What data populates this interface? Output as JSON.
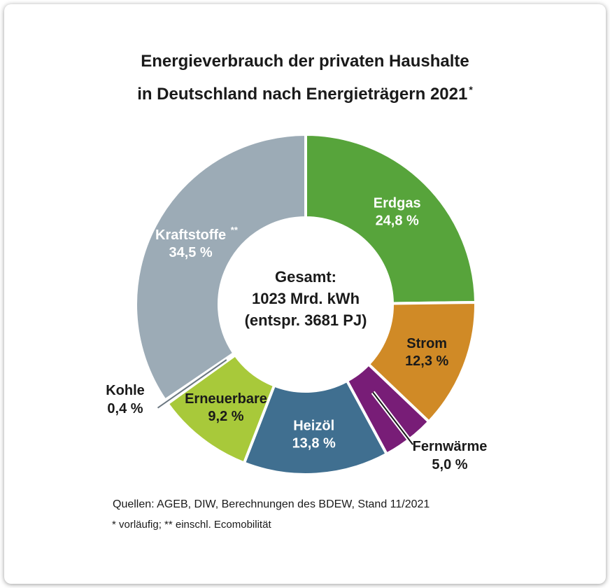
{
  "title": {
    "line1": "Energieverbrauch der privaten Haushalte",
    "line2": "in Deutschland nach Energieträgern 2021",
    "sup": "*"
  },
  "center": {
    "line1": "Gesamt:",
    "line2": "1023 Mrd. kWh",
    "line3": "(entspr. 3681 PJ)"
  },
  "footnotes": {
    "sources": "Quellen: AGEB, DIW, Berechnungen des BDEW, Stand 11/2021",
    "notes": "* vorläufig; ** einschl. Ecomobilität"
  },
  "chart_data": {
    "type": "pie",
    "donut": true,
    "title": "Energieverbrauch der privaten Haushalte in Deutschland nach Energieträgern 2021*",
    "center_label": "Gesamt: 1023 Mrd. kWh (entspr. 3681 PJ)",
    "start_angle_deg": 0,
    "direction": "clockwise",
    "slices": [
      {
        "label": "Erdgas",
        "value": 24.8,
        "display": "24,8 %",
        "color": "#57a43b",
        "text_color": "#ffffff",
        "label_placement": "inside"
      },
      {
        "label": "Strom",
        "value": 12.3,
        "display": "12,3 %",
        "color": "#d08a26",
        "text_color": "#1a1a1a",
        "label_placement": "inside"
      },
      {
        "label": "Fernwärme",
        "value": 5.0,
        "display": "5,0 %",
        "color": "#781d77",
        "text_color": "#1a1a1a",
        "label_placement": "outside"
      },
      {
        "label": "Heizöl",
        "value": 13.8,
        "display": "13,8 %",
        "color": "#406f90",
        "text_color": "#ffffff",
        "label_placement": "inside"
      },
      {
        "label": "Erneuerbare",
        "value": 9.2,
        "display": "9,2 %",
        "color": "#a8c93a",
        "text_color": "#1a1a1a",
        "label_placement": "inside"
      },
      {
        "label": "Kohle",
        "value": 0.4,
        "display": "0,4 %",
        "color": "#3c3c3b",
        "text_color": "#1a1a1a",
        "label_placement": "outside"
      },
      {
        "label": "Kraftstoffe",
        "sup": "**",
        "value": 34.5,
        "display": "34,5 %",
        "color": "#9cabb6",
        "text_color": "#ffffff",
        "label_placement": "inside"
      }
    ]
  }
}
